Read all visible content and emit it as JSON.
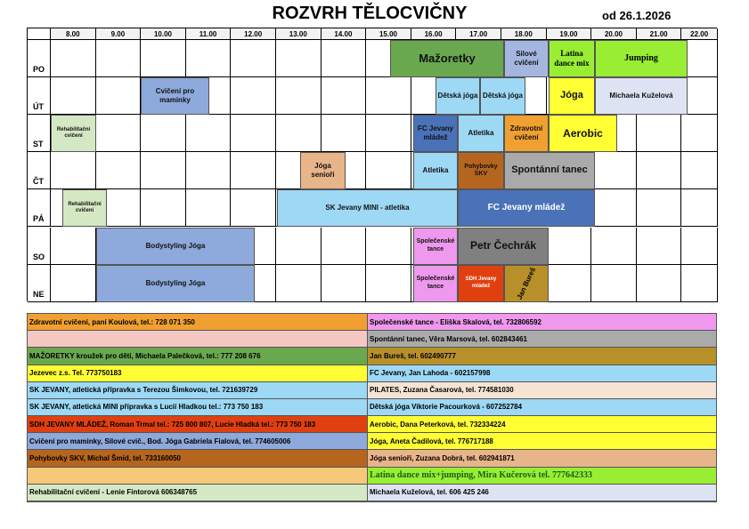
{
  "header": {
    "title": "ROZVRH TĚLOCVIČNY",
    "date": "od 26.1.2026"
  },
  "timetable": {
    "times": [
      "8.00",
      "9.00",
      "10.00",
      "11.00",
      "12.00",
      "13.00",
      "14.00",
      "15.00",
      "16.00",
      "17.00",
      "18.00",
      "19.00",
      "20.00",
      "21.00",
      "22.00"
    ],
    "days": [
      {
        "name": "PO",
        "events": [
          "Mažoretky",
          "Silové cvičení",
          "Latina dance mix",
          "Jumping"
        ]
      },
      {
        "name": "ÚT",
        "events": [
          "Cvičení pro maminky",
          "Dětská jóga",
          "Dětská jóga",
          "Jóga",
          "Michaela Kuželová"
        ]
      },
      {
        "name": "ST",
        "events": [
          "Rehabilitační cvičení",
          "FC Jevany mládež",
          "Atletika",
          "Zdravotní cvičení",
          "Aerobic"
        ]
      },
      {
        "name": "ČT",
        "events": [
          "Jóga senioři",
          "Atletika",
          "Pohybovky SKV",
          "Spontánní tanec"
        ]
      },
      {
        "name": "PÁ",
        "events": [
          "Rehabilitační cvičení",
          "SK Jevany MINI - atletika",
          "FC Jevany mládež"
        ]
      },
      {
        "name": "SO",
        "events": [
          "Bodystyling Jóga",
          "Společenské tance",
          "Petr Čechrák"
        ]
      },
      {
        "name": "NE",
        "events": [
          "Bodystyling Jóga",
          "Společenské tance",
          "SDH Jevany mládež",
          "Jan Bureš"
        ]
      }
    ]
  },
  "legend": {
    "left": [
      "Zdravotní cvičení, paní Koulová, tel.: 728 071 350",
      null,
      "MAŽORETKY kroužek pro děti, Michaela Palečková, tel.: 777 208 676",
      "Jezevec z.s.   Tel.  773750183",
      "SK JEVANY, atletická přípravka s Terezou Šimkovou, tel. 721639729",
      "SK JEVANY, atletická MINI přípravka s Lucií Hladkou tel.: 773 750 183",
      "SDH JEVANY MLÁDEŽ, Roman Trmal tel.: 725 800 807, Lucie Hladká tel.: 773 750 183",
      "Cvičení pro maminky, Silové cvič., Bod. Jóga Gabriela Fialová, tel. 774605006",
      "Pohybovky SKV, Michal Šmíd, tel. 733160050",
      null,
      "Rehabilitační cvičení - Lenie Fintorová  606348765"
    ],
    "right": [
      "Společenské tance - Eliška Skalová, tel. 732806592",
      "Spontánní tanec, Věra Marsová, tel. 602843461",
      "Jan Bureš, tel. 602490777",
      "FC Jevany, Jan Lahoda - 602157998",
      "PILATES, Zuzana Časarová, tel. 774581030",
      "Dětská jóga Viktorie Pacourková - 607252784",
      "Aerobic, Dana Peterková, tel. 732334224",
      "Jóga, Aneta Čadilová, tel. 776717188",
      "Jóga senioři, Zuzana Dobrá, tel. 602941871",
      "Latina dance mix+jumping, Mira Kučerová tel. 777642333",
      "Michaela Kuželová, tel.  606 425 246"
    ]
  }
}
